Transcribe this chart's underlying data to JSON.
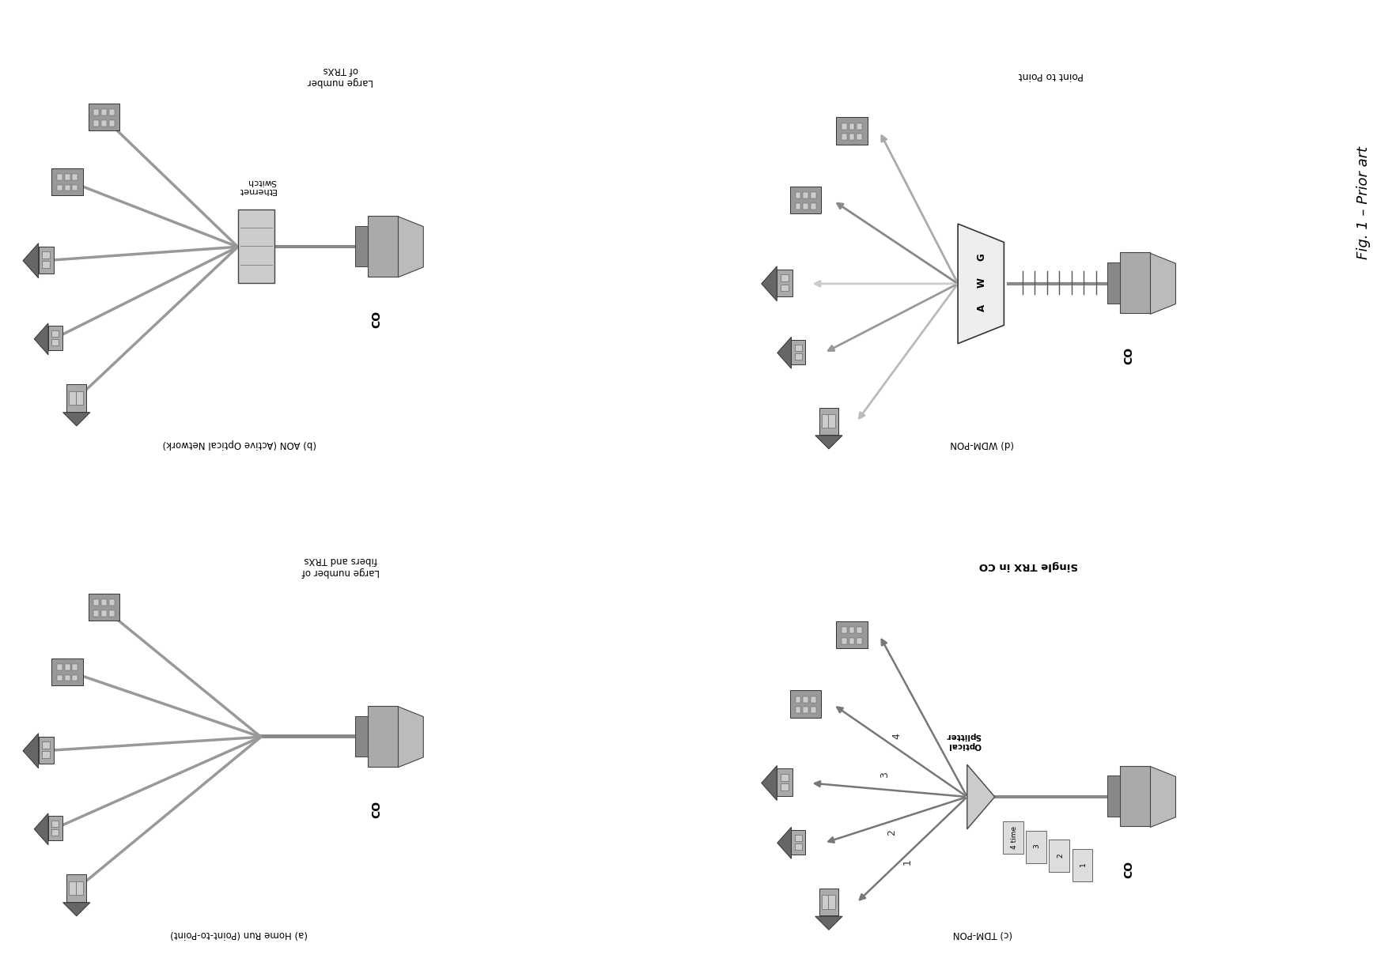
{
  "fig_width": 12.4,
  "fig_height": 19.99,
  "bg_color": "#ffffff",
  "title": "Fig. 1 – Prior art",
  "panel_a_label": "(a) Home Run (Point-to-Point)",
  "panel_a_sublabel": "Large number of fibers and TRXs",
  "panel_b_label": "(b) AON (Active Optical Network)",
  "panel_b_sublabel": "Large number of TRXs",
  "panel_c_label": "(c) TDM-PON",
  "panel_c_sublabel": "Single TRX in CO",
  "panel_d_label": "(d) WDM-PON",
  "panel_d_sublabel": "Point to Point",
  "line_color": "#777777",
  "house_color": "#888888",
  "co_color": "#aaaaaa",
  "dark_gray": "#555555",
  "mid_gray": "#888888",
  "light_gray": "#cccccc"
}
